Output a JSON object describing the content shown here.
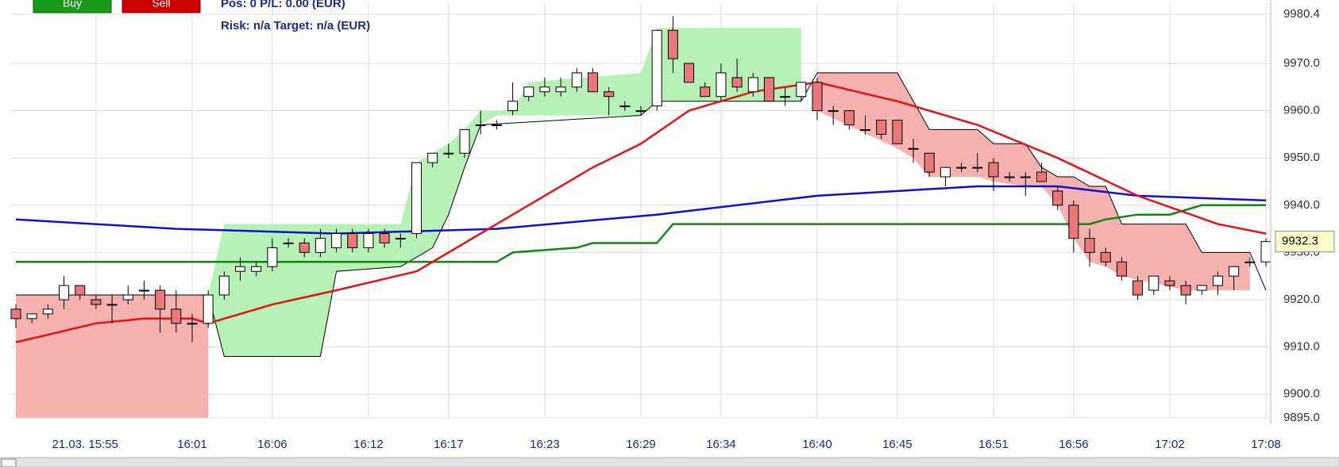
{
  "toolbar": {
    "buttons": [
      "Buy",
      "Sell"
    ],
    "info_line1": "Pos: 0  P/L: 0.00  (EUR)",
    "info_line2": "Risk: n/a  Target: n/a (EUR)"
  },
  "chart_data": {
    "type": "candlestick",
    "x": [
      0,
      1,
      2,
      3,
      4,
      5,
      6,
      7,
      8,
      9,
      10,
      11,
      12,
      13,
      14,
      15,
      16,
      17,
      18,
      19,
      20,
      21,
      22,
      23,
      24,
      25,
      26,
      27,
      28,
      29,
      30,
      31,
      32,
      33,
      34,
      35,
      36,
      37,
      38,
      39,
      40,
      41,
      42,
      43,
      44,
      45,
      46,
      47,
      48,
      49,
      50,
      51,
      52,
      53,
      54,
      55,
      56,
      57,
      58,
      59,
      60,
      61,
      62,
      63,
      64,
      65,
      66,
      67,
      68,
      69,
      70,
      71,
      72,
      73,
      74,
      75,
      76,
      77,
      78
    ],
    "candles": {
      "open": [
        9918,
        9916,
        9917,
        9920,
        9923,
        9920,
        9919,
        9920,
        9922,
        9922,
        9918,
        9915,
        9915,
        9921,
        9926,
        9926,
        9927,
        9932,
        9932,
        9930,
        9931,
        9934,
        9931,
        9934,
        9933,
        9934,
        9949,
        9951,
        9951,
        9957,
        9957,
        9960,
        9963,
        9964,
        9964,
        9965,
        9968,
        9964,
        9961,
        9960,
        9961,
        9977,
        9970,
        9965,
        9963,
        9967,
        9964,
        9967,
        9963,
        9963,
        9966,
        9960,
        9960,
        9956,
        9958,
        9958,
        9952,
        9951,
        9946,
        9948,
        9948,
        9949,
        9946,
        9946,
        9947,
        9943,
        9940,
        9933,
        9930,
        9928,
        9924,
        9922,
        9924,
        9923,
        9922,
        9923,
        9925,
        9928,
        9928
      ],
      "high": [
        9919,
        9917,
        9919,
        9925,
        9923,
        9921,
        9921,
        9923,
        9924,
        9923,
        9922,
        9917,
        9922,
        9926,
        9929,
        9928,
        9933,
        9933,
        9933,
        9935,
        9935,
        9935,
        9935,
        9935,
        9934,
        9949,
        9951,
        9953,
        9956,
        9960,
        9958,
        9966,
        9965,
        9967,
        9967,
        9969,
        9969,
        9965,
        9962,
        9961,
        9977,
        9980,
        9970,
        9966,
        9970,
        9971,
        9968,
        9967,
        9965,
        9966,
        9967,
        9961,
        9960,
        9959,
        9958,
        9958,
        9954,
        9951,
        9948,
        9949,
        9951,
        9950,
        9947,
        9947,
        9949,
        9944,
        9941,
        9935,
        9931,
        9929,
        9925,
        9925,
        9925,
        9924,
        9923,
        9926,
        9927,
        9929,
        9933
      ],
      "low": [
        9914,
        9915,
        9916,
        9918,
        9920,
        9918,
        9915,
        9919,
        9920,
        9913,
        9913,
        9911,
        9914,
        9920,
        9924,
        9925,
        9926,
        9931,
        9929,
        9929,
        9930,
        9930,
        9930,
        9931,
        9931,
        9933,
        9948,
        9950,
        9950,
        9955,
        9956,
        9959,
        9962,
        9963,
        9963,
        9964,
        9964,
        9959,
        9960,
        9959,
        9960,
        9968,
        9966,
        9963,
        9962,
        9964,
        9963,
        9962,
        9961,
        9962,
        9958,
        9957,
        9956,
        9955,
        9954,
        9953,
        9949,
        9946,
        9944,
        9947,
        9947,
        9943,
        9945,
        9942,
        9945,
        9939,
        9930,
        9927,
        9927,
        9924,
        9920,
        9921,
        9922,
        9919,
        9921,
        9921,
        9922,
        9927,
        9927
      ],
      "close": [
        9916,
        9917,
        9918,
        9923,
        9921,
        9919,
        9919,
        9921,
        9922,
        9918,
        9915,
        9915,
        9921,
        9925,
        9927,
        9927,
        9931,
        9932,
        9930,
        9933,
        9934,
        9931,
        9934,
        9932,
        9933,
        9949,
        9951,
        9951,
        9956,
        9957,
        9957,
        9962,
        9965,
        9965,
        9965,
        9968,
        9964,
        9963,
        9961,
        9960,
        9977,
        9971,
        9966,
        9963,
        9968,
        9965,
        9967,
        9962,
        9963,
        9966,
        9960,
        9960,
        9957,
        9956,
        9955,
        9953,
        9952,
        9947,
        9948,
        9948,
        9948,
        9946,
        9946,
        9946,
        9945,
        9940,
        9933,
        9930,
        9928,
        9925,
        9921,
        9925,
        9923,
        9921,
        9923,
        9925,
        9927,
        9928,
        9932.3
      ],
      "up_color": "#ffffff",
      "down_color": "#e8787a"
    },
    "areas": [
      {
        "color": "#f6b1b1",
        "x": [
          0,
          12
        ],
        "upper": [
          9921,
          9921
        ],
        "lower": [
          9895,
          9895
        ]
      },
      {
        "color": "#b6f2b6",
        "x": [
          12,
          13,
          19,
          20,
          24,
          25,
          26,
          27,
          28,
          29,
          30,
          31,
          32,
          39,
          40,
          49
        ],
        "upper": [
          9921,
          9936,
          9936,
          9936,
          9936,
          9949,
          9951,
          9953,
          9956,
          9960,
          9960,
          9960,
          9966,
          9968,
          9977.5,
          9977.5
        ],
        "lower": [
          9921,
          9908,
          9908,
          9926,
          9927,
          9929,
          9931,
          9938,
          9948,
          9957,
          9959,
          9959,
          9959,
          9959,
          9962,
          9962
        ]
      },
      {
        "color": "#f6b1b1",
        "x": [
          50,
          55,
          56,
          57,
          60,
          61,
          63,
          64,
          65,
          66,
          67,
          68,
          69,
          73,
          74,
          77
        ],
        "upper": [
          9968,
          9968,
          9962,
          9956,
          9956,
          9953,
          9953,
          9948,
          9946,
          9946,
          9944,
          9944,
          9936,
          9936,
          9930,
          9930
        ],
        "lower": [
          9960,
          9952,
          9950,
          9946,
          9946,
          9945,
          9944,
          9944,
          9940,
          9933,
          9928,
          9927,
          9925,
          9922,
          9922,
          9922
        ]
      }
    ],
    "lines": [
      {
        "color": "#000000",
        "width": 1,
        "x": [
          0,
          12,
          13,
          19,
          20,
          24,
          25,
          26,
          27,
          28,
          29,
          39,
          40,
          49,
          50,
          55,
          56,
          57,
          60,
          61,
          63,
          64,
          65,
          66,
          67,
          68,
          69,
          73,
          74,
          77,
          78
        ],
        "values": [
          9921,
          9921,
          9908,
          9908,
          9926,
          9927,
          9929,
          9931,
          9938,
          9948,
          9957,
          9959,
          9962,
          9962,
          9968,
          9968,
          9962,
          9956,
          9956,
          9953,
          9953,
          9948,
          9946,
          9946,
          9944,
          9944,
          9936,
          9936,
          9930,
          9930,
          9922
        ]
      },
      {
        "color": "#118811",
        "width": 2.5,
        "x": [
          0,
          30,
          31,
          35,
          36,
          40,
          41,
          67,
          68,
          70,
          72,
          74,
          78
        ],
        "values": [
          9928,
          9928,
          9930,
          9931,
          9932,
          9932,
          9936,
          9936,
          9937,
          9938,
          9938,
          9940,
          9940
        ]
      },
      {
        "color": "#1111cc",
        "width": 2.5,
        "x": [
          0,
          10,
          20,
          30,
          40,
          50,
          60,
          65,
          70,
          78
        ],
        "values": [
          9937,
          9935,
          9934,
          9935,
          9938,
          9942,
          9944,
          9944,
          9942,
          9941
        ]
      },
      {
        "color": "#e21414",
        "width": 2.5,
        "x": [
          0,
          5,
          8,
          11,
          12,
          16,
          20,
          25,
          28,
          32,
          36,
          39,
          42,
          46,
          50,
          55,
          60,
          65,
          70,
          75,
          78
        ],
        "values": [
          9911,
          9915,
          9916,
          9916,
          9915,
          9919,
          9922,
          9926,
          9932,
          9940,
          9948,
          9953,
          9960,
          9964,
          9966,
          9962,
          9957,
          9950,
          9942,
          9936,
          9934
        ]
      }
    ],
    "xlim": [
      -0.5,
      78.5
    ],
    "xticks": [
      {
        "value": 5,
        "label": "21.03.  15:55"
      },
      {
        "value": 11,
        "label": "16:01"
      },
      {
        "value": 16,
        "label": "16:06"
      },
      {
        "value": 22,
        "label": "16:12"
      },
      {
        "value": 27,
        "label": "16:17"
      },
      {
        "value": 33,
        "label": "16:23"
      },
      {
        "value": 39,
        "label": "16:29"
      },
      {
        "value": 44,
        "label": "16:34"
      },
      {
        "value": 50,
        "label": "16:40"
      },
      {
        "value": 55,
        "label": "16:45"
      },
      {
        "value": 61,
        "label": "16:51"
      },
      {
        "value": 66,
        "label": "16:56"
      },
      {
        "value": 72,
        "label": "17:02"
      },
      {
        "value": 78,
        "label": "17:08"
      }
    ],
    "ylim": [
      9895,
      9980.4
    ],
    "yticks": [
      {
        "value": 9895,
        "label": "9895.0"
      },
      {
        "value": 9900,
        "label": "9900.0"
      },
      {
        "value": 9910,
        "label": "9910.0"
      },
      {
        "value": 9920,
        "label": "9920.0"
      },
      {
        "value": 9930,
        "label": "9930.0"
      },
      {
        "value": 9940,
        "label": "9940.0"
      },
      {
        "value": 9950,
        "label": "9950.0"
      },
      {
        "value": 9960,
        "label": "9960.0"
      },
      {
        "value": 9970,
        "label": "9970.0"
      },
      9980.4
    ],
    "grid": true
  }
}
